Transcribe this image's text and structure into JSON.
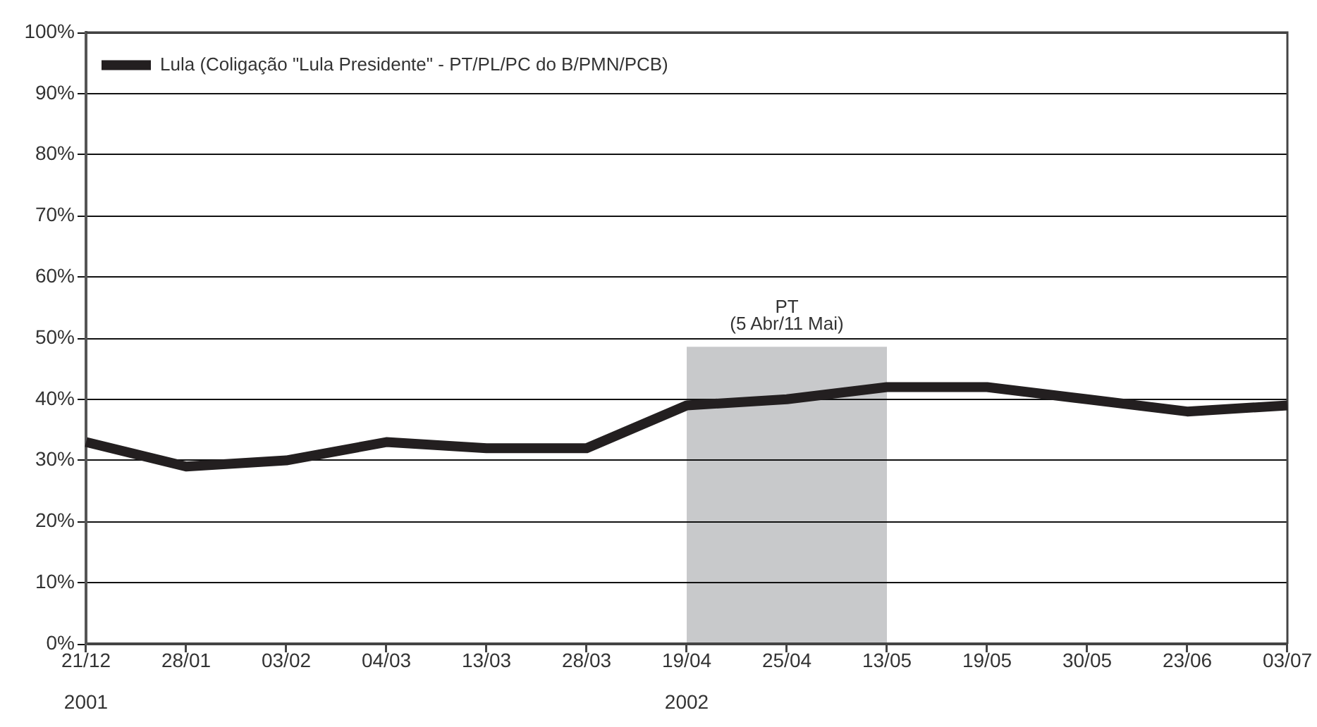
{
  "chart_data": {
    "type": "line",
    "categories": [
      "21/12\n2001",
      "28/01",
      "03/02",
      "04/03",
      "13/03",
      "28/03",
      "19/04\n2002",
      "25/04",
      "13/05",
      "19/05",
      "30/05",
      "23/06",
      "03/07"
    ],
    "series": [
      {
        "name": "Lula (Coligação \"Lula Presidente\" - PT/PL/PC do B/PMN/PCB)",
        "color": "#231f20",
        "values": [
          33,
          29,
          30,
          33,
          32,
          32,
          39,
          40,
          42,
          42,
          40,
          38,
          39
        ]
      }
    ],
    "ylim": [
      0,
      100
    ],
    "yticks": [
      {
        "value": 0,
        "label": "0%"
      },
      {
        "value": 10,
        "label": "10%"
      },
      {
        "value": 20,
        "label": "20%"
      },
      {
        "value": 30,
        "label": "30%"
      },
      {
        "value": 40,
        "label": "40%"
      },
      {
        "value": 50,
        "label": "50%"
      },
      {
        "value": 60,
        "label": "60%"
      },
      {
        "value": 70,
        "label": "70%"
      },
      {
        "value": 80,
        "label": "80%"
      },
      {
        "value": 90,
        "label": "90%"
      },
      {
        "value": 100,
        "label": "100%"
      }
    ],
    "grid": "y",
    "legend": "top left",
    "bands": [
      {
        "axis": "x",
        "from": "19/04\n2002",
        "to": "13/05",
        "label": "PT\n(5 Abr/11 Mai)",
        "color": "#c8c9cb"
      }
    ]
  }
}
